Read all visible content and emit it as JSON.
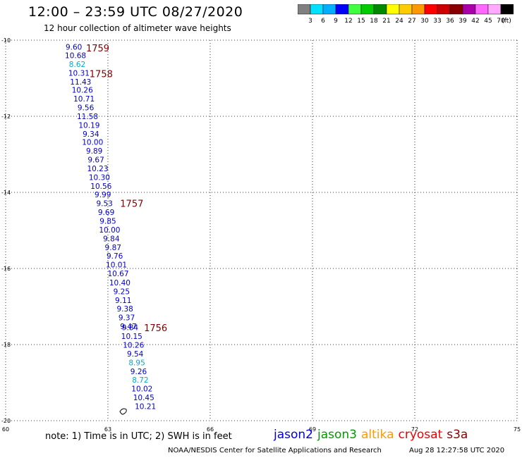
{
  "header": {
    "title": "12:00 – 23:59 UTC 08/27/2020",
    "subtitle": "12 hour collection of altimeter wave heights"
  },
  "colorbar": {
    "swatches": [
      "#808080",
      "#00e0ff",
      "#00b0ff",
      "#0000ff",
      "#40ff40",
      "#00cc00",
      "#008800",
      "#ffff00",
      "#ffcc00",
      "#ff9900",
      "#ff0000",
      "#cc0000",
      "#880000",
      "#aa00aa",
      "#ff66ff",
      "#ffaaff",
      "#000000"
    ],
    "labels": [
      "3",
      "6",
      "9",
      "12",
      "15",
      "18",
      "21",
      "24",
      "27",
      "30",
      "33",
      "36",
      "39",
      "42",
      "45",
      "70"
    ],
    "unit": "(ft)"
  },
  "axes": {
    "x_ticks": [
      "60",
      "63",
      "66",
      "69",
      "72",
      "75"
    ],
    "y_ticks": [
      "-10",
      "-12",
      "-14",
      "-16",
      "-18",
      "-20"
    ],
    "lon_range": [
      60,
      75
    ],
    "lat_range": [
      -20,
      -10
    ]
  },
  "chart_data": {
    "type": "scatter",
    "measurements": [
      {
        "lon": 62.0,
        "lat": -10.18,
        "value": "9.60",
        "color": "#0000cc"
      },
      {
        "lon": 62.05,
        "lat": -10.4,
        "value": "10.68",
        "color": "#0000cc"
      },
      {
        "lon": 62.1,
        "lat": -10.63,
        "value": "8.62",
        "color": "#00aacc"
      },
      {
        "lon": 62.15,
        "lat": -10.86,
        "value": "10.31",
        "color": "#0000cc"
      },
      {
        "lon": 62.2,
        "lat": -11.09,
        "value": "11.43",
        "color": "#0000cc"
      },
      {
        "lon": 62.25,
        "lat": -11.31,
        "value": "10.26",
        "color": "#0000cc"
      },
      {
        "lon": 62.3,
        "lat": -11.54,
        "value": "10.71",
        "color": "#0000cc"
      },
      {
        "lon": 62.35,
        "lat": -11.77,
        "value": "9.56",
        "color": "#0000cc"
      },
      {
        "lon": 62.4,
        "lat": -12.0,
        "value": "11.58",
        "color": "#0000cc"
      },
      {
        "lon": 62.45,
        "lat": -12.23,
        "value": "10.19",
        "color": "#0000cc"
      },
      {
        "lon": 62.5,
        "lat": -12.46,
        "value": "9.34",
        "color": "#0000cc"
      },
      {
        "lon": 62.55,
        "lat": -12.68,
        "value": "10.00",
        "color": "#0000cc"
      },
      {
        "lon": 62.6,
        "lat": -12.91,
        "value": "9.89",
        "color": "#0000cc"
      },
      {
        "lon": 62.65,
        "lat": -13.14,
        "value": "9.67",
        "color": "#0000cc"
      },
      {
        "lon": 62.7,
        "lat": -13.37,
        "value": "10.23",
        "color": "#0000cc"
      },
      {
        "lon": 62.75,
        "lat": -13.6,
        "value": "10.30",
        "color": "#0000cc"
      },
      {
        "lon": 62.8,
        "lat": -13.83,
        "value": "10.56",
        "color": "#0000cc"
      },
      {
        "lon": 62.85,
        "lat": -14.06,
        "value": "9.99",
        "color": "#0000cc"
      },
      {
        "lon": 62.9,
        "lat": -14.29,
        "value": "9.53",
        "color": "#0000cc"
      },
      {
        "lon": 62.95,
        "lat": -14.52,
        "value": "9.69",
        "color": "#0000cc"
      },
      {
        "lon": 63.0,
        "lat": -14.75,
        "value": "9.85",
        "color": "#0000cc"
      },
      {
        "lon": 63.05,
        "lat": -14.98,
        "value": "10.00",
        "color": "#0000cc"
      },
      {
        "lon": 63.1,
        "lat": -15.21,
        "value": "9.84",
        "color": "#0000cc"
      },
      {
        "lon": 63.15,
        "lat": -15.44,
        "value": "9.87",
        "color": "#0000cc"
      },
      {
        "lon": 63.2,
        "lat": -15.67,
        "value": "9.76",
        "color": "#0000cc"
      },
      {
        "lon": 63.25,
        "lat": -15.9,
        "value": "10.01",
        "color": "#0000cc"
      },
      {
        "lon": 63.3,
        "lat": -16.13,
        "value": "10.67",
        "color": "#0000cc"
      },
      {
        "lon": 63.35,
        "lat": -16.37,
        "value": "10.40",
        "color": "#0000cc"
      },
      {
        "lon": 63.4,
        "lat": -16.6,
        "value": "9.25",
        "color": "#0000cc"
      },
      {
        "lon": 63.45,
        "lat": -16.83,
        "value": "9.11",
        "color": "#0000cc"
      },
      {
        "lon": 63.5,
        "lat": -17.06,
        "value": "9.38",
        "color": "#0000cc"
      },
      {
        "lon": 63.55,
        "lat": -17.29,
        "value": "9.37",
        "color": "#0000cc"
      },
      {
        "lon": 63.6,
        "lat": -17.52,
        "value": "9.47",
        "color": "#0000cc"
      },
      {
        "lon": 63.65,
        "lat": -17.55,
        "value": "9.84",
        "color": "#0000cc"
      },
      {
        "lon": 63.7,
        "lat": -17.78,
        "value": "10.15",
        "color": "#0000cc"
      },
      {
        "lon": 63.75,
        "lat": -18.01,
        "value": "10.26",
        "color": "#0000cc"
      },
      {
        "lon": 63.8,
        "lat": -18.24,
        "value": "9.54",
        "color": "#0000cc"
      },
      {
        "lon": 63.85,
        "lat": -18.47,
        "value": "8.95",
        "color": "#00aacc"
      },
      {
        "lon": 63.9,
        "lat": -18.7,
        "value": "9.26",
        "color": "#0000cc"
      },
      {
        "lon": 63.95,
        "lat": -18.93,
        "value": "8.72",
        "color": "#00aacc"
      },
      {
        "lon": 64.0,
        "lat": -19.16,
        "value": "10.02",
        "color": "#0000cc"
      },
      {
        "lon": 64.05,
        "lat": -19.39,
        "value": "10.45",
        "color": "#0000cc"
      },
      {
        "lon": 64.1,
        "lat": -19.62,
        "value": "10.21",
        "color": "#0000cc"
      }
    ],
    "time_labels": [
      {
        "lon": 62.7,
        "lat": -10.2,
        "text": "1759"
      },
      {
        "lon": 62.8,
        "lat": -10.88,
        "text": "1758"
      },
      {
        "lon": 63.7,
        "lat": -14.29,
        "text": "1757"
      },
      {
        "lon": 64.4,
        "lat": -17.56,
        "text": "1756"
      }
    ],
    "time_label_color": "#800000"
  },
  "footer": {
    "note": "note: 1) Time is in UTC; 2) SWH is in feet",
    "satellites": [
      {
        "name": "jason2",
        "color": "#0000dd"
      },
      {
        "name": "jason3",
        "color": "#009900"
      },
      {
        "name": "altika",
        "color": "#ff9900"
      },
      {
        "name": "cryosat",
        "color": "#ee0000"
      },
      {
        "name": "s3a",
        "color": "#880000"
      }
    ],
    "credit": "NOAA/NESDIS Center for Satellite Applications and Research",
    "timestamp": "Aug 28 12:27:58 UTC 2020"
  }
}
